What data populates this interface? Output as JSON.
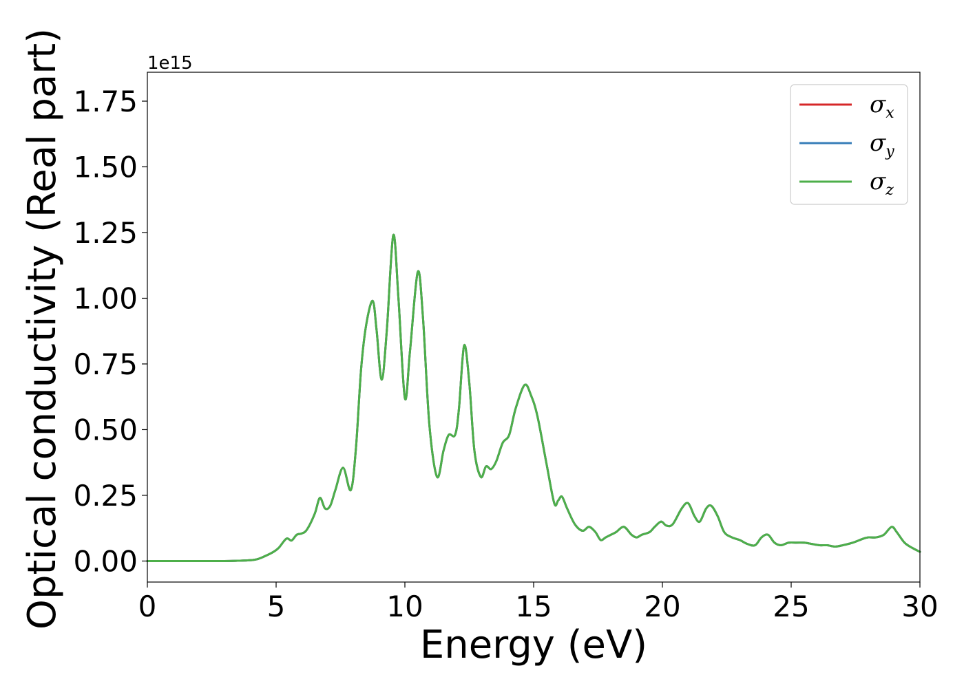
{
  "chart_data": {
    "type": "line",
    "xlabel": "Energy (eV)",
    "ylabel": "Optical conductivity (Real part)",
    "y_offset_label": "1e15",
    "xlim": [
      0,
      30
    ],
    "ylim": [
      -0.08,
      1.86
    ],
    "xticks": [
      0,
      5,
      10,
      15,
      20,
      25,
      30
    ],
    "xtick_labels": [
      "0",
      "5",
      "10",
      "15",
      "20",
      "25",
      "30"
    ],
    "yticks": [
      0.0,
      0.25,
      0.5,
      0.75,
      1.0,
      1.25,
      1.5,
      1.75
    ],
    "ytick_labels": [
      "0.00",
      "0.25",
      "0.50",
      "0.75",
      "1.00",
      "1.25",
      "1.50",
      "1.75"
    ],
    "grid": false,
    "legend_position": "top-right",
    "series": [
      {
        "name": "σx",
        "symbol": "σ",
        "subscript": "x",
        "color": "#d62728"
      },
      {
        "name": "σy",
        "symbol": "σ",
        "subscript": "y",
        "color": "#377eb8"
      },
      {
        "name": "σz",
        "symbol": "σ",
        "subscript": "z",
        "color": "#4daf4a"
      }
    ],
    "x": [
      0,
      1,
      2,
      3,
      3.5,
      4,
      4.3,
      4.6,
      4.9,
      5.1,
      5.4,
      5.6,
      5.8,
      6.0,
      6.2,
      6.5,
      6.7,
      6.9,
      7.1,
      7.3,
      7.6,
      7.9,
      8.1,
      8.3,
      8.5,
      8.75,
      8.9,
      9.1,
      9.3,
      9.55,
      9.75,
      10.0,
      10.2,
      10.5,
      10.7,
      10.95,
      11.25,
      11.5,
      11.7,
      11.95,
      12.1,
      12.3,
      12.5,
      12.7,
      12.95,
      13.15,
      13.35,
      13.55,
      13.8,
      14.05,
      14.3,
      14.65,
      14.9,
      15.15,
      15.5,
      15.8,
      15.95,
      16.1,
      16.3,
      16.6,
      16.9,
      17.15,
      17.4,
      17.6,
      17.8,
      18.0,
      18.2,
      18.5,
      18.8,
      19.0,
      19.2,
      19.5,
      19.7,
      19.95,
      20.15,
      20.4,
      20.75,
      21.0,
      21.25,
      21.45,
      21.7,
      21.9,
      22.15,
      22.4,
      22.7,
      23.0,
      23.3,
      23.6,
      23.85,
      24.1,
      24.35,
      24.6,
      24.9,
      25.2,
      25.5,
      25.8,
      26.1,
      26.4,
      26.7,
      27.0,
      27.4,
      27.8,
      28.0,
      28.3,
      28.6,
      28.9,
      29.1,
      29.4,
      29.7,
      30.0
    ],
    "values": [
      0.0,
      0.0,
      0.0,
      0.0,
      0.001,
      0.003,
      0.008,
      0.02,
      0.035,
      0.05,
      0.085,
      0.078,
      0.1,
      0.105,
      0.12,
      0.18,
      0.24,
      0.2,
      0.21,
      0.27,
      0.355,
      0.27,
      0.43,
      0.73,
      0.9,
      0.99,
      0.88,
      0.69,
      0.88,
      1.24,
      1.0,
      0.62,
      0.8,
      1.1,
      0.93,
      0.52,
      0.32,
      0.42,
      0.48,
      0.48,
      0.58,
      0.82,
      0.68,
      0.42,
      0.32,
      0.36,
      0.35,
      0.38,
      0.45,
      0.48,
      0.58,
      0.67,
      0.63,
      0.55,
      0.37,
      0.22,
      0.23,
      0.245,
      0.2,
      0.14,
      0.115,
      0.13,
      0.11,
      0.08,
      0.09,
      0.1,
      0.11,
      0.13,
      0.1,
      0.09,
      0.1,
      0.11,
      0.13,
      0.15,
      0.135,
      0.14,
      0.2,
      0.22,
      0.17,
      0.15,
      0.2,
      0.21,
      0.17,
      0.11,
      0.09,
      0.08,
      0.065,
      0.06,
      0.09,
      0.1,
      0.07,
      0.06,
      0.07,
      0.07,
      0.07,
      0.065,
      0.06,
      0.06,
      0.055,
      0.06,
      0.07,
      0.085,
      0.09,
      0.09,
      0.1,
      0.13,
      0.11,
      0.07,
      0.05,
      0.035
    ]
  }
}
